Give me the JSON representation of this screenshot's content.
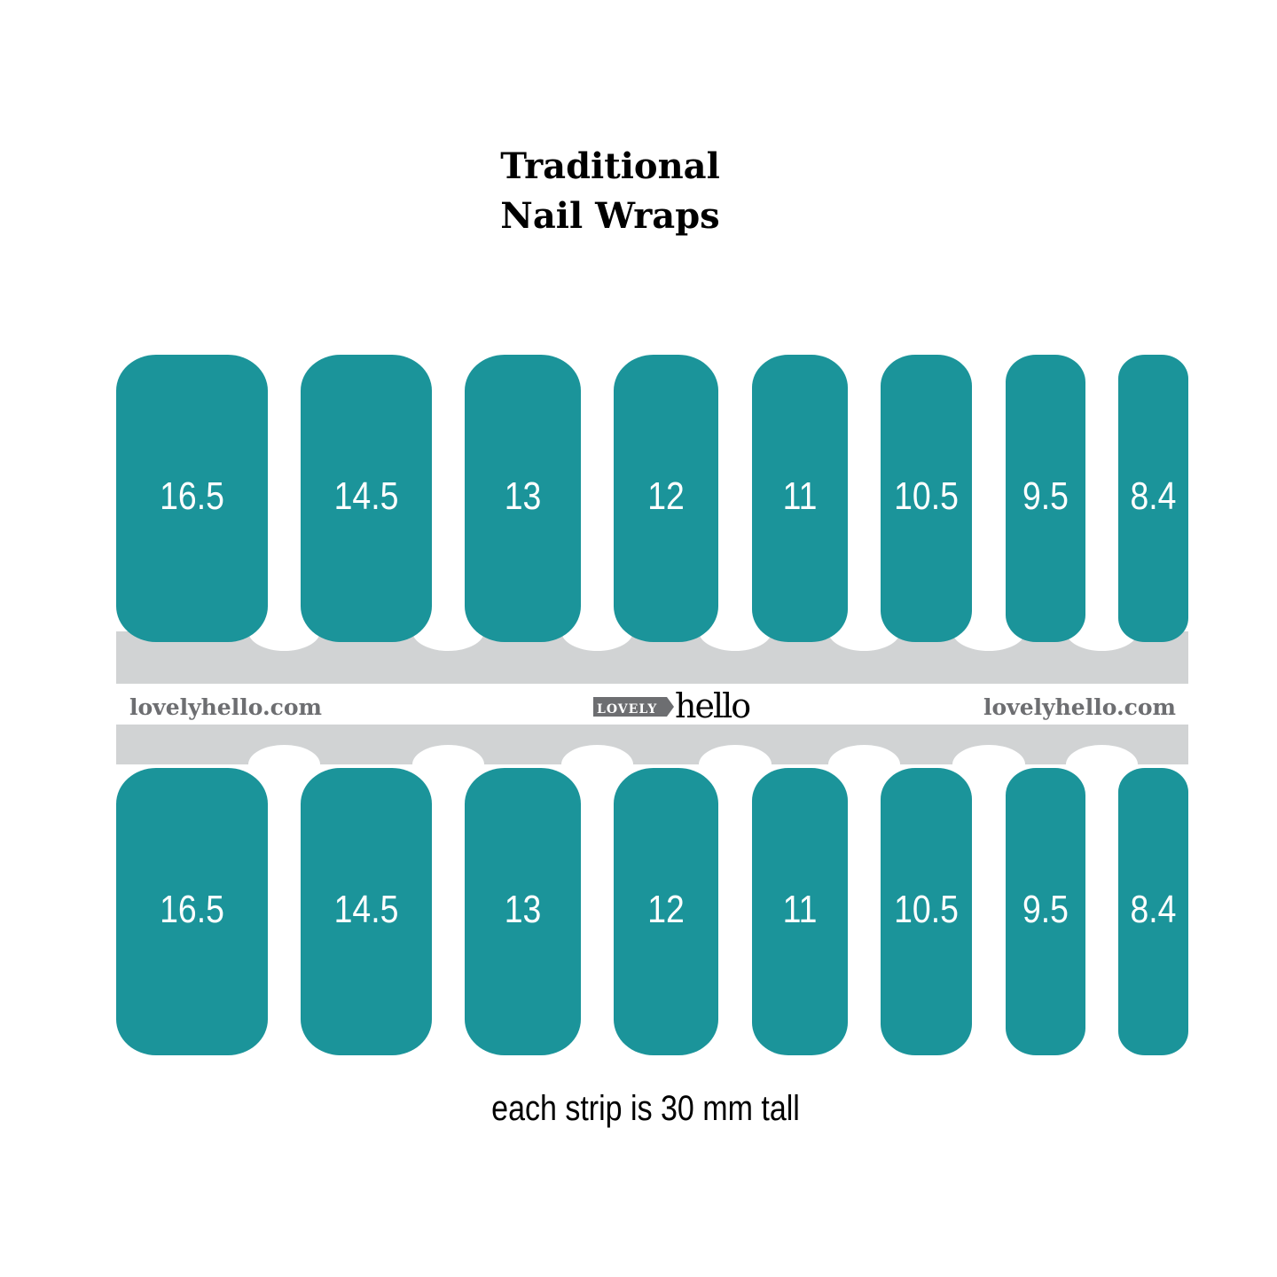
{
  "title": {
    "line1": "Traditional",
    "line2": "Nail Wraps"
  },
  "top_row": [
    "16.5",
    "14.5",
    "13",
    "12",
    "11",
    "10.5",
    "9.5",
    "8.4"
  ],
  "bottom_row": [
    "16.5",
    "14.5",
    "13",
    "12",
    "11",
    "10.5",
    "9.5",
    "8.4"
  ],
  "band": {
    "site_left": "lovelyhello.com",
    "site_right": "lovelyhello.com",
    "logo": {
      "badge": "LOVELY",
      "word": "hello"
    }
  },
  "caption": "each strip is 30 mm tall",
  "colors": {
    "nail": "#1b949a",
    "band": "#d1d3d4",
    "site_text": "#6d6e71"
  }
}
